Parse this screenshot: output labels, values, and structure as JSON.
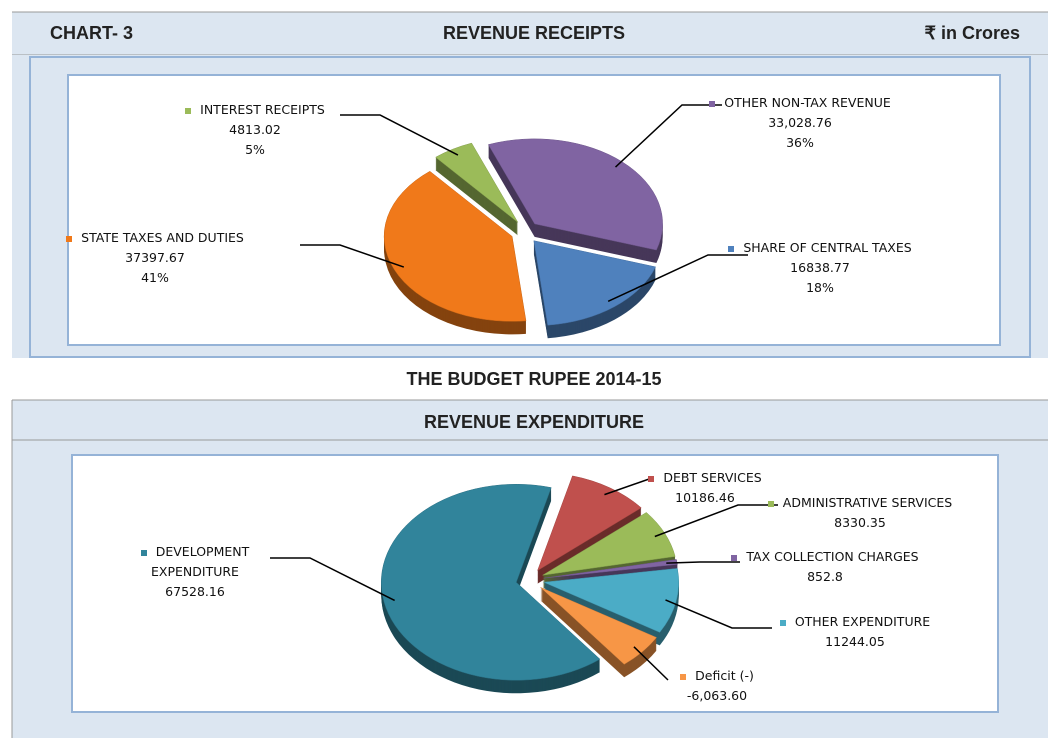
{
  "header": {
    "chart_no": "CHART- 3",
    "unit": "₹ in Crores",
    "middle": "THE BUDGET RUPEE 2014-15"
  },
  "chart_data": [
    {
      "type": "pie",
      "title": "REVENUE RECEIPTS",
      "categories": [
        "INTEREST RECEIPTS",
        "OTHER NON-TAX REVENUE",
        "SHARE OF CENTRAL TAXES",
        "STATE TAXES AND DUTIES"
      ],
      "values": [
        4813.02,
        33028.76,
        16838.77,
        37397.67
      ],
      "value_labels": [
        "4813.02",
        "33,028.76",
        "16838.77",
        "37397.67"
      ],
      "percent_labels": [
        "5%",
        "36%",
        "18%",
        "41%"
      ],
      "colors": [
        "#9bbb59",
        "#8064a2",
        "#4f81bd",
        "#f0791a"
      ]
    },
    {
      "type": "pie",
      "title": "REVENUE EXPENDITURE",
      "categories": [
        "DEBT SERVICES",
        "ADMINISTRATIVE SERVICES",
        "TAX COLLECTION CHARGES",
        "OTHER EXPENDITURE",
        "Deficit (-)",
        "DEVELOPMENT EXPENDITURE"
      ],
      "values": [
        10186.46,
        8330.35,
        852.8,
        11244.05,
        -6063.6,
        67528.16
      ],
      "value_labels": [
        "10186.46",
        "8330.35",
        "852.8",
        "11244.05",
        "-6,063.60",
        "67528.16"
      ],
      "colors": [
        "#c0504d",
        "#9bbb59",
        "#8064a2",
        "#4bacc6",
        "#f79646",
        "#31849b"
      ]
    }
  ]
}
